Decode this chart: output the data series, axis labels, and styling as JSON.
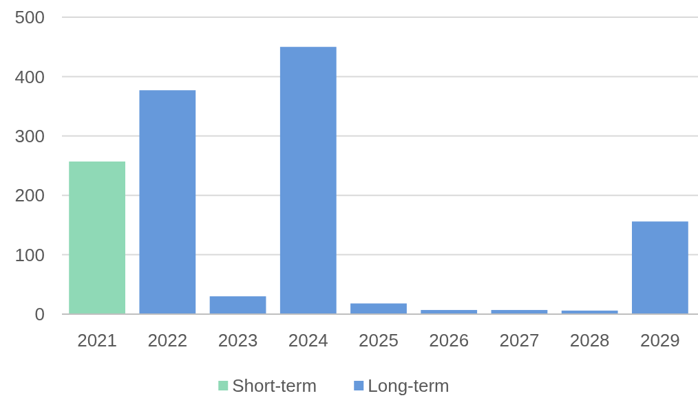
{
  "chart_data": {
    "type": "bar",
    "categories": [
      "2021",
      "2022",
      "2023",
      "2024",
      "2025",
      "2026",
      "2027",
      "2028",
      "2029"
    ],
    "series": [
      {
        "name": "Short-term",
        "color": "#8fd9b6",
        "values": [
          257,
          null,
          null,
          null,
          null,
          null,
          null,
          null,
          null
        ]
      },
      {
        "name": "Long-term",
        "color": "#6699db",
        "values": [
          null,
          377,
          30,
          450,
          18,
          7,
          7,
          6,
          156
        ]
      }
    ],
    "stacked": true,
    "ylim": [
      0,
      500
    ],
    "yticks": [
      0,
      100,
      200,
      300,
      400,
      500
    ],
    "grid": "y",
    "legend": "bottom"
  }
}
